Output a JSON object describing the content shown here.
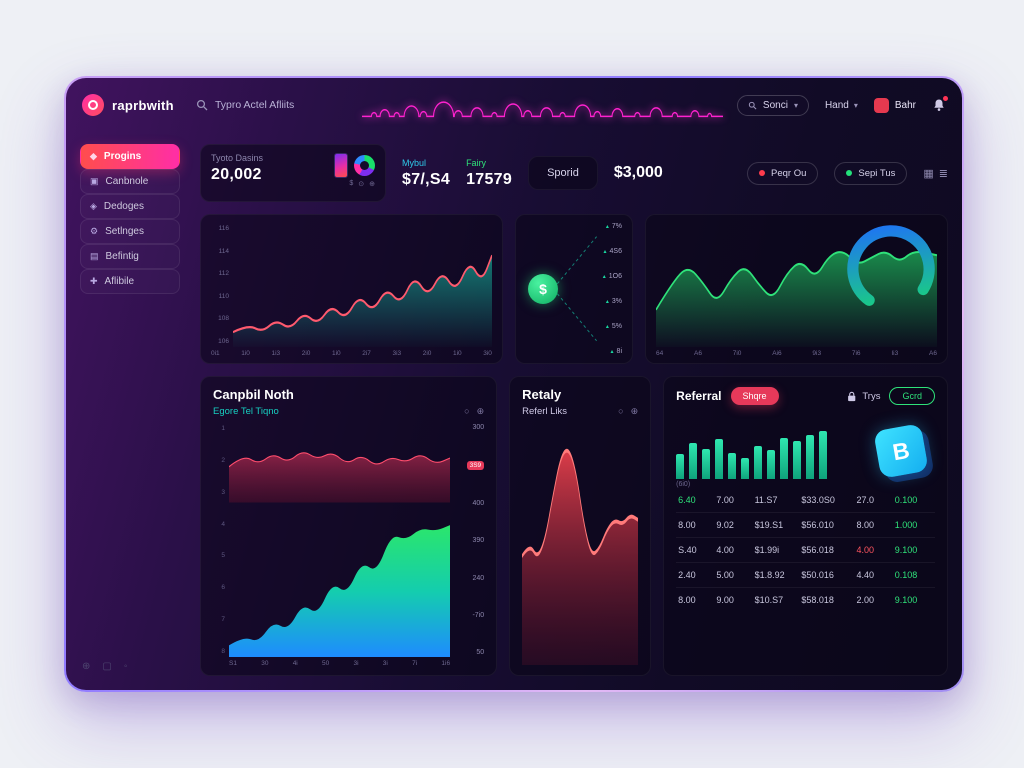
{
  "header": {
    "logo_text": "raprbwith",
    "search_text": "Typro Actel Afliits",
    "sonci_label": "Sonci",
    "hand_label": "Hand",
    "user_label": "Bahr"
  },
  "icons": {
    "chevron": "▾",
    "plus_circle": "⊕",
    "dot_circle": "○",
    "grid": "▦",
    "menu": "≣",
    "tri_up": "▴",
    "mini": [
      "$",
      "⊙",
      "⊕"
    ],
    "footer": [
      "⊕",
      "▢",
      "◦"
    ]
  },
  "sidebar": {
    "items": [
      {
        "label": "Progins",
        "icon": "◆",
        "active": true
      },
      {
        "label": "Canbnole",
        "icon": "▣",
        "active": false
      },
      {
        "label": "Dedoges",
        "icon": "◈",
        "active": false
      },
      {
        "label": "Setlnges",
        "icon": "⚙",
        "active": false
      },
      {
        "label": "Befintig",
        "icon": "▤",
        "active": false
      },
      {
        "label": "Aflibile",
        "icon": "✚",
        "active": false
      }
    ]
  },
  "stats": {
    "total_label": "Tyoto Dasins",
    "total_value": "20,002",
    "mybul_label": "Mybul",
    "mybul_value": "$7/,S4",
    "fairy_label": "Fairy",
    "fairy_value": "17579",
    "sporid_label": "Sporid",
    "amount": "$3,000",
    "peqr_label": "Peqr Ou",
    "sepi_label": "Sepi Tus"
  },
  "charts": {
    "spark1": {
      "y_labels": [
        "116",
        "114",
        "112",
        "110",
        "108",
        "106"
      ],
      "x_labels": [
        "0i1",
        "1i0",
        "1i3",
        "2i0",
        "1i0",
        "2i7",
        "3i3",
        "2i0",
        "1i0",
        "3i0"
      ],
      "points": [
        [
          0,
          88
        ],
        [
          18,
          82
        ],
        [
          34,
          88
        ],
        [
          50,
          78
        ],
        [
          66,
          86
        ],
        [
          82,
          72
        ],
        [
          98,
          82
        ],
        [
          114,
          66
        ],
        [
          130,
          78
        ],
        [
          146,
          58
        ],
        [
          162,
          72
        ],
        [
          178,
          52
        ],
        [
          194,
          66
        ],
        [
          210,
          42
        ],
        [
          226,
          60
        ],
        [
          242,
          38
        ],
        [
          258,
          56
        ],
        [
          274,
          30
        ],
        [
          288,
          48
        ],
        [
          300,
          26
        ]
      ]
    },
    "percent_card": {
      "values": [
        "7%",
        "4S6",
        "1O6",
        "3%",
        "5%",
        "8i"
      ]
    },
    "spark2": {
      "x_labels": [
        "64",
        "A6",
        "7i0",
        "Ai6",
        "9i3",
        "7i6",
        "Ii3",
        "A6"
      ],
      "points": [
        [
          0,
          70
        ],
        [
          20,
          45
        ],
        [
          35,
          35
        ],
        [
          50,
          48
        ],
        [
          65,
          65
        ],
        [
          80,
          45
        ],
        [
          95,
          34
        ],
        [
          110,
          50
        ],
        [
          125,
          62
        ],
        [
          140,
          40
        ],
        [
          155,
          30
        ],
        [
          170,
          45
        ],
        [
          185,
          26
        ],
        [
          200,
          22
        ],
        [
          215,
          34
        ],
        [
          230,
          28
        ],
        [
          245,
          22
        ],
        [
          260,
          32
        ],
        [
          275,
          22
        ],
        [
          300,
          26
        ]
      ]
    },
    "maroon_points": [
      [
        0,
        55
      ],
      [
        20,
        40
      ],
      [
        40,
        52
      ],
      [
        60,
        38
      ],
      [
        80,
        50
      ],
      [
        100,
        34
      ],
      [
        120,
        46
      ],
      [
        140,
        36
      ],
      [
        160,
        52
      ],
      [
        180,
        40
      ],
      [
        200,
        55
      ],
      [
        220,
        42
      ],
      [
        240,
        50
      ],
      [
        260,
        38
      ],
      [
        280,
        52
      ],
      [
        300,
        44
      ]
    ],
    "gradient_points": [
      [
        0,
        92
      ],
      [
        20,
        86
      ],
      [
        40,
        90
      ],
      [
        60,
        76
      ],
      [
        80,
        82
      ],
      [
        100,
        64
      ],
      [
        120,
        72
      ],
      [
        140,
        50
      ],
      [
        160,
        58
      ],
      [
        180,
        36
      ],
      [
        200,
        44
      ],
      [
        220,
        18
      ],
      [
        240,
        22
      ],
      [
        260,
        14
      ],
      [
        280,
        16
      ],
      [
        300,
        12
      ]
    ],
    "retaly_points": [
      [
        0,
        55
      ],
      [
        20,
        50
      ],
      [
        40,
        56
      ],
      [
        60,
        48
      ],
      [
        80,
        30
      ],
      [
        100,
        14
      ],
      [
        120,
        10
      ],
      [
        140,
        20
      ],
      [
        160,
        42
      ],
      [
        180,
        55
      ],
      [
        200,
        52
      ],
      [
        220,
        44
      ],
      [
        240,
        40
      ],
      [
        260,
        42
      ],
      [
        280,
        38
      ],
      [
        300,
        40
      ]
    ],
    "bars": [
      38,
      55,
      45,
      60,
      40,
      32,
      50,
      44,
      62,
      58,
      66,
      72
    ],
    "waveform": [
      [
        18,
        4
      ],
      [
        34,
        7
      ],
      [
        52,
        4
      ],
      [
        74,
        11
      ],
      [
        92,
        5
      ],
      [
        122,
        15
      ],
      [
        144,
        6
      ],
      [
        172,
        9
      ],
      [
        198,
        4
      ],
      [
        226,
        13
      ],
      [
        248,
        6
      ],
      [
        276,
        9
      ],
      [
        300,
        4
      ],
      [
        330,
        12
      ],
      [
        352,
        5
      ],
      [
        382,
        8
      ],
      [
        412,
        4
      ],
      [
        440,
        9
      ],
      [
        468,
        4
      ],
      [
        498,
        6
      ],
      [
        520,
        3
      ]
    ]
  },
  "canpbil": {
    "title": "Canpbil Noth",
    "subtitle": "Egore Tel Tiqno",
    "left_ticks": [
      "1",
      "2",
      "3",
      "4",
      "5",
      "6",
      "7",
      "8"
    ],
    "right_labels": [
      {
        "v": "300"
      },
      {
        "v": "3S9",
        "badge": true
      },
      {
        "v": "400"
      },
      {
        "v": "390"
      },
      {
        "v": "240"
      },
      {
        "v": "-7i0"
      },
      {
        "v": "50"
      }
    ],
    "x_labels": [
      "S1",
      "30",
      "4i",
      "50",
      "3i",
      "3i",
      "7i",
      "1i6"
    ]
  },
  "retaly": {
    "title": "Retaly",
    "subtitle": "Referl Liks"
  },
  "referral": {
    "title": "Referral",
    "share_label": "Shqre",
    "trys_label": "Trys",
    "gcrd_label": "Gcrd",
    "caption": "(6i0)",
    "bitcoin_symbol": "B",
    "table": {
      "rows": [
        [
          {
            "v": "6.40",
            "c": "g"
          },
          {
            "v": "7.00"
          },
          {
            "v": "11.S7"
          },
          {
            "v": "$33.0S0"
          },
          {
            "v": "27.0"
          },
          {
            "v": "0.100",
            "c": "g"
          }
        ],
        [
          {
            "v": "8.00"
          },
          {
            "v": "9.02"
          },
          {
            "v": "$19.S1"
          },
          {
            "v": "$56.010"
          },
          {
            "v": "8.00"
          },
          {
            "v": "1.000",
            "c": "g"
          }
        ],
        [
          {
            "v": "S.40"
          },
          {
            "v": "4.00"
          },
          {
            "v": "$1.99i"
          },
          {
            "v": "$56.018"
          },
          {
            "v": "4.00",
            "c": "r"
          },
          {
            "v": "9.100",
            "c": "g"
          }
        ],
        [
          {
            "v": "2.40"
          },
          {
            "v": "5.00"
          },
          {
            "v": "$1.8.92"
          },
          {
            "v": "$50.016"
          },
          {
            "v": "4.40"
          },
          {
            "v": "0.108",
            "c": "g"
          }
        ],
        [
          {
            "v": "8.00"
          },
          {
            "v": "9.00"
          },
          {
            "v": "$10.S7"
          },
          {
            "v": "$58.018"
          },
          {
            "v": "2.00"
          },
          {
            "v": "9.100",
            "c": "g"
          }
        ]
      ]
    }
  },
  "colors": {
    "accent_pink": "#ff2ea6",
    "accent_teal": "#14e0b8",
    "accent_green": "#2fe27a",
    "accent_red": "#ff4d5e",
    "accent_blue": "#2e8bff",
    "waveform": "#ff22cf"
  }
}
